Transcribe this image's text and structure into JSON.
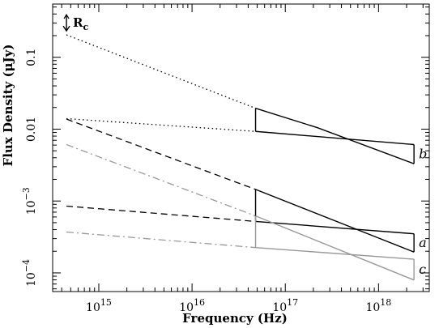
{
  "chart_data": {
    "type": "line",
    "xlabel": "Frequency (Hz)",
    "ylabel": "Flux Density (μJy)",
    "xscale": "log",
    "yscale": "log",
    "xlim": [
      320000000000000.0,
      3.5e+18
    ],
    "ylim": [
      5.5e-05,
      0.55
    ],
    "grid": false,
    "legend": "none",
    "x_ticks": [
      {
        "value": 1000000000000000.0,
        "label": "10",
        "exp": "15"
      },
      {
        "value": 1e+16,
        "label": "10",
        "exp": "16"
      },
      {
        "value": 1e+17,
        "label": "10",
        "exp": "17"
      },
      {
        "value": 1e+18,
        "label": "10",
        "exp": "18"
      }
    ],
    "y_ticks": [
      {
        "value": 0.1,
        "label": "0.1",
        "exp": ""
      },
      {
        "value": 0.01,
        "label": "0.01",
        "exp": ""
      },
      {
        "value": 0.001,
        "label": "10",
        "exp": "−3"
      },
      {
        "value": 0.0001,
        "label": "10",
        "exp": "−4"
      }
    ],
    "upper_limit": {
      "label": "R",
      "subscript": "c",
      "x": 450000000000000.0,
      "y": 0.21
    },
    "bowties": [
      {
        "label": "b",
        "color": "#000000",
        "x_range": [
          4.8e+16,
          2.4e+18
        ],
        "upper": [
          [
            4.8e+16,
            0.0195
          ],
          [
            2.2e+17,
            0.0105
          ],
          [
            2.4e+18,
            0.0033
          ]
        ],
        "lower": [
          [
            4.8e+16,
            0.0093
          ],
          [
            2.4e+18,
            0.0061
          ]
        ]
      },
      {
        "label": "a",
        "color": "#000000",
        "x_range": [
          4.8e+16,
          2.4e+18
        ],
        "upper": [
          [
            4.8e+16,
            0.00145
          ],
          [
            2.4e+18,
            0.000195
          ]
        ],
        "lower": [
          [
            4.8e+16,
            0.00052
          ],
          [
            2.4e+18,
            0.00035
          ]
        ]
      },
      {
        "label": "c",
        "color": "#999999",
        "x_range": [
          4.8e+16,
          2.4e+18
        ],
        "upper": [
          [
            4.8e+16,
            0.00062
          ],
          [
            2.4e+18,
            7.95e-05
          ]
        ],
        "lower": [
          [
            4.8e+16,
            0.000225
          ],
          [
            2.4e+18,
            0.000155
          ]
        ]
      }
    ],
    "extrapolations": [
      {
        "style": "dotted",
        "color": "#000000",
        "points": [
          [
            450000000000000.0,
            0.205
          ],
          [
            4.8e+16,
            0.0195
          ]
        ]
      },
      {
        "style": "dotted",
        "color": "#000000",
        "points": [
          [
            450000000000000.0,
            0.014
          ],
          [
            4.8e+16,
            0.0093
          ]
        ]
      },
      {
        "style": "dashed",
        "color": "#000000",
        "points": [
          [
            450000000000000.0,
            0.0138
          ],
          [
            4.8e+16,
            0.00145
          ]
        ]
      },
      {
        "style": "dashed",
        "color": "#000000",
        "points": [
          [
            450000000000000.0,
            0.00085
          ],
          [
            4.8e+16,
            0.00052
          ]
        ]
      },
      {
        "style": "dashdot",
        "color": "#999999",
        "points": [
          [
            450000000000000.0,
            0.0061
          ],
          [
            4.8e+16,
            0.00062
          ]
        ]
      },
      {
        "style": "dashdot",
        "color": "#999999",
        "points": [
          [
            450000000000000.0,
            0.00037
          ],
          [
            4.8e+16,
            0.000225
          ]
        ]
      }
    ]
  }
}
